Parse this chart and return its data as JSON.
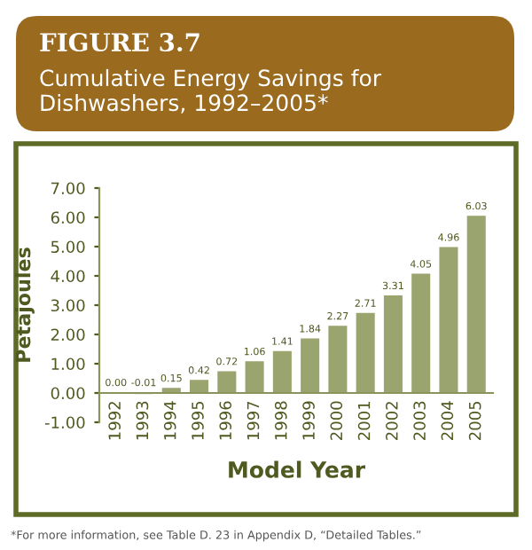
{
  "chart_data": {
    "type": "bar",
    "title": "FIGURE 3.7",
    "subtitle": "Cumulative Energy Savings for Dishwashers, 1992–2005*",
    "xlabel": "Model Year",
    "ylabel": "Petajoules",
    "categories": [
      "1992",
      "1993",
      "1994",
      "1995",
      "1996",
      "1997",
      "1998",
      "1999",
      "2000",
      "2001",
      "2002",
      "2003",
      "2004",
      "2005"
    ],
    "values": [
      0.0,
      -0.01,
      0.15,
      0.42,
      0.72,
      1.06,
      1.41,
      1.84,
      2.27,
      2.71,
      3.31,
      4.05,
      4.96,
      6.03
    ],
    "value_labels": [
      "0.00",
      "-0.01",
      "0.15",
      "0.42",
      "0.72",
      "1.06",
      "1.41",
      "1.84",
      "2.27",
      "2.71",
      "3.31",
      "4.05",
      "4.96",
      "6.03"
    ],
    "color": "#9aa46e",
    "ylim": [
      -1,
      7
    ],
    "yticks": [
      {
        "value": -1,
        "label": "-1.00"
      },
      {
        "value": 0,
        "label": "0.00"
      },
      {
        "value": 1,
        "label": "1.00"
      },
      {
        "value": 2,
        "label": "2.00"
      },
      {
        "value": 3,
        "label": "3.00"
      },
      {
        "value": 4,
        "label": "4.00"
      },
      {
        "value": 5,
        "label": "5.00"
      },
      {
        "value": 6,
        "label": "6.00"
      },
      {
        "value": 7,
        "label": "7.00"
      }
    ],
    "grid": false,
    "legend": false,
    "annotations": [
      "*For more information, see Table D. 23 in Appendix D, “Detailed Tables.”"
    ]
  }
}
